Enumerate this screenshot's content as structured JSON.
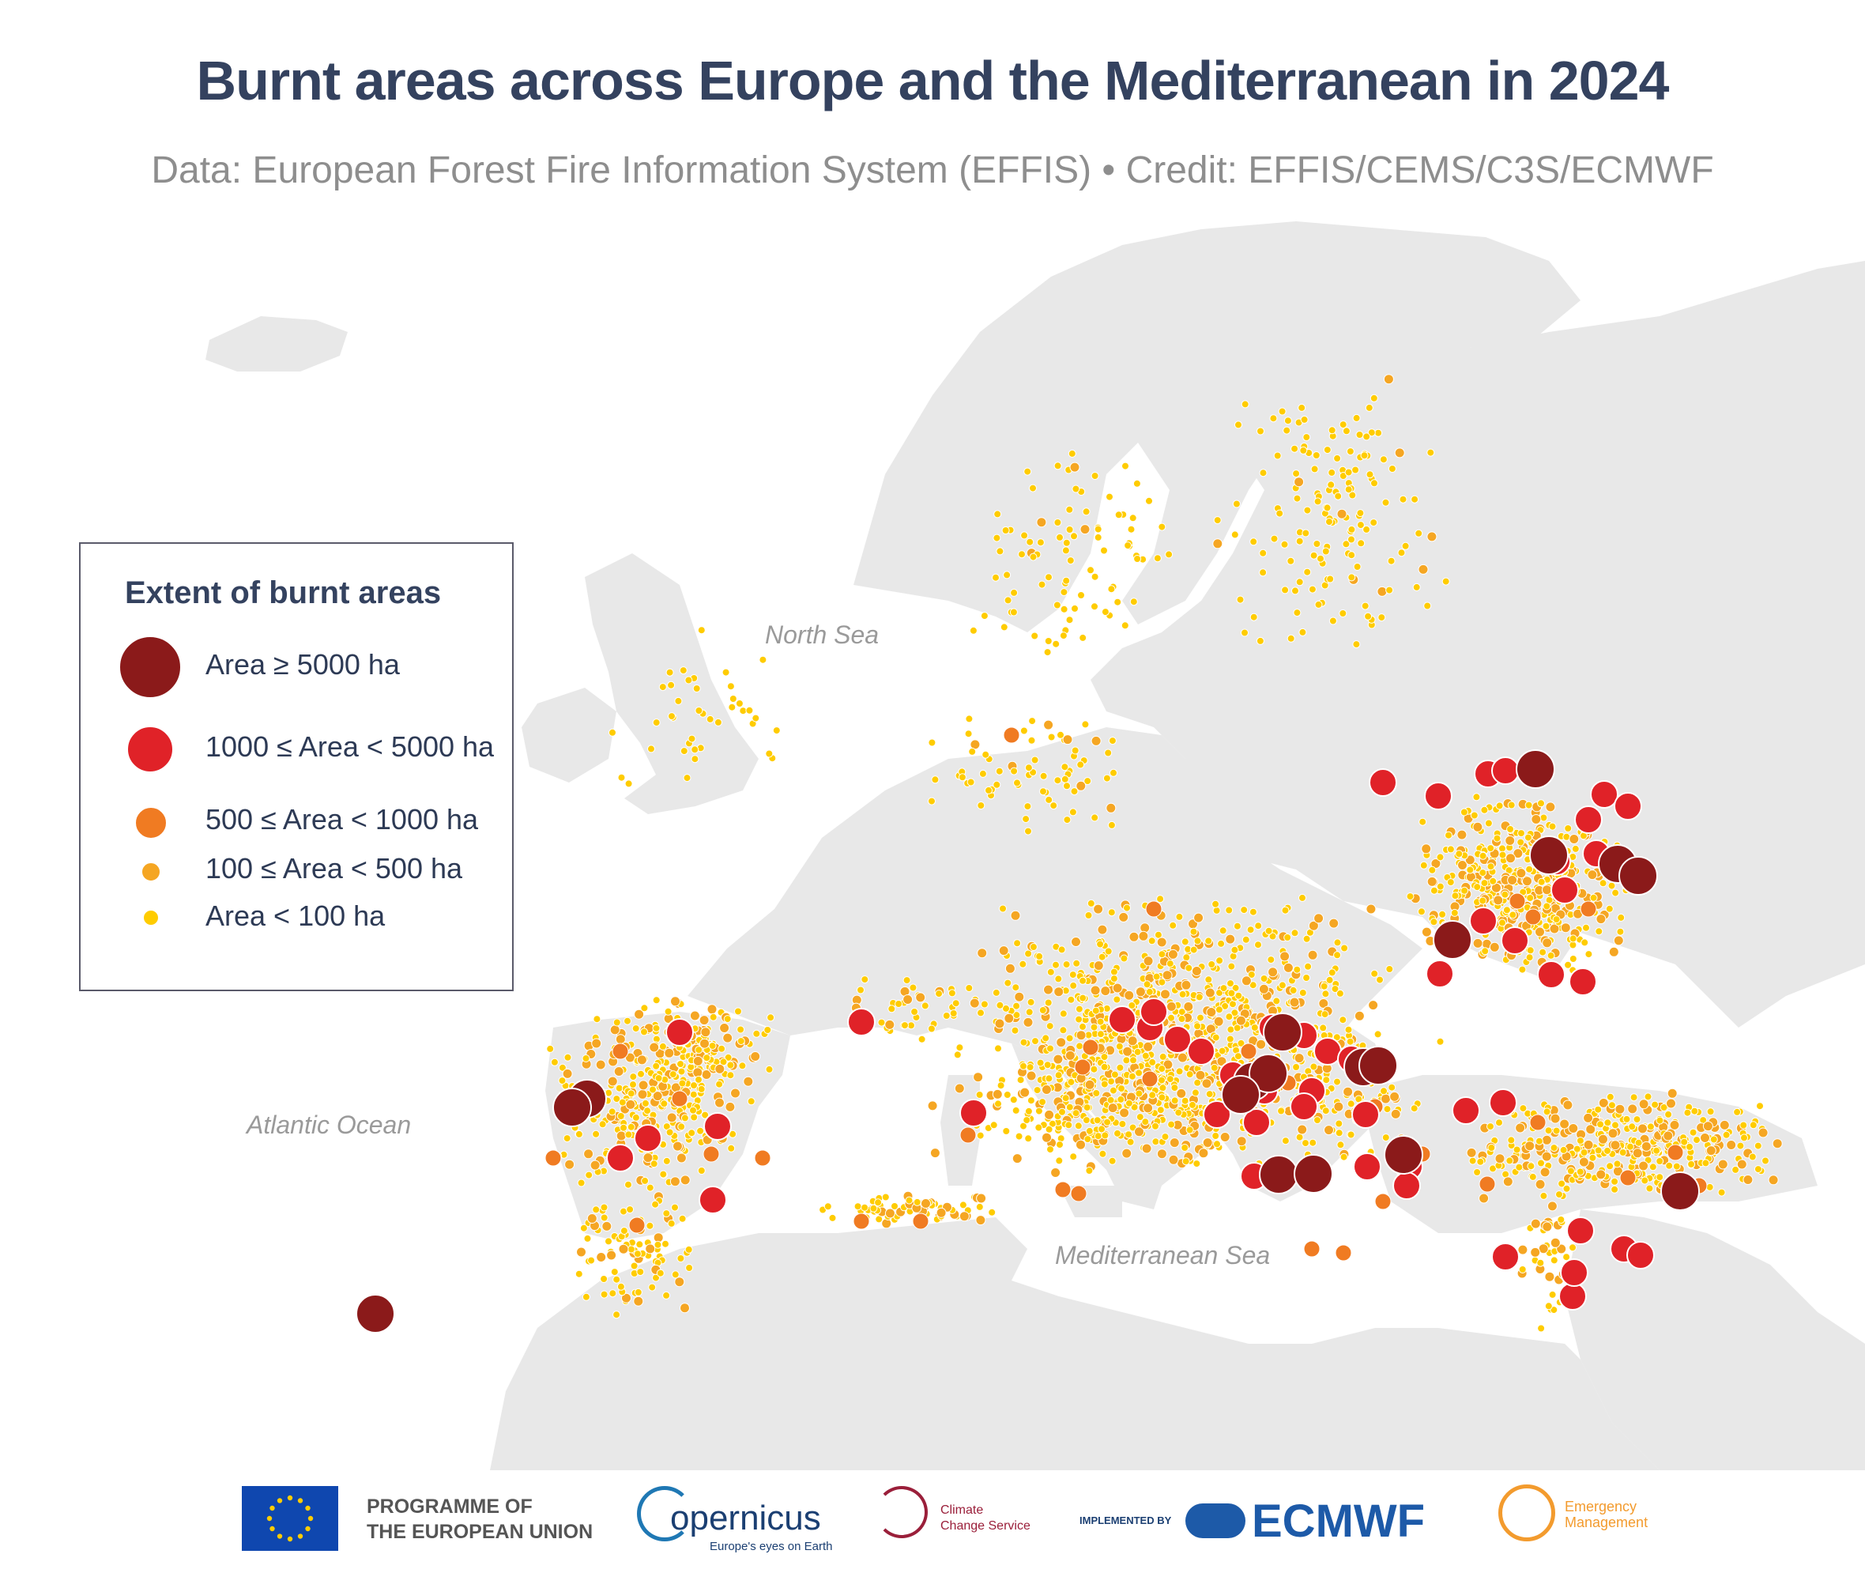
{
  "header": {
    "title": "Burnt areas across Europe and the Mediterranean in 2024",
    "subtitle": "Data: European Forest Fire Information System (EFFIS) • Credit: EFFIS/CEMS/C3S/ECMWF"
  },
  "map": {
    "seas": [
      "North Sea",
      "Atlantic Ocean",
      "Mediterranean Sea"
    ],
    "colors": {
      "land": "#e8e8e8",
      "background": "#ffffff",
      "class_5000": "#8b1a1a",
      "class_1000": "#e02228",
      "class_500": "#f07b22",
      "class_100": "#f5a623",
      "class_lt100": "#ffcc00"
    }
  },
  "legend": {
    "title": "Extent of burnt areas",
    "items": [
      {
        "label": "Area ≥ 5000 ha",
        "color": "#8b1a1a"
      },
      {
        "label": "1000 ≤ Area < 5000 ha",
        "color": "#e02228"
      },
      {
        "label": "500 ≤ Area < 1000 ha",
        "color": "#f07b22"
      },
      {
        "label": "100 ≤ Area < 500 ha",
        "color": "#f5a623"
      },
      {
        "label": "Area < 100 ha",
        "color": "#ffcc00"
      }
    ]
  },
  "footer": {
    "eu_line1": "PROGRAMME OF",
    "eu_line2": "THE EUROPEAN UNION",
    "copernicus": "opernicus",
    "copernicus_tag": "Europe's eyes on Earth",
    "c3s_line1": "Climate",
    "c3s_line2": "Change Service",
    "implemented_by": "IMPLEMENTED BY",
    "ecmwf": "ECMWF",
    "em_line1": "Emergency",
    "em_line2": "Management"
  }
}
